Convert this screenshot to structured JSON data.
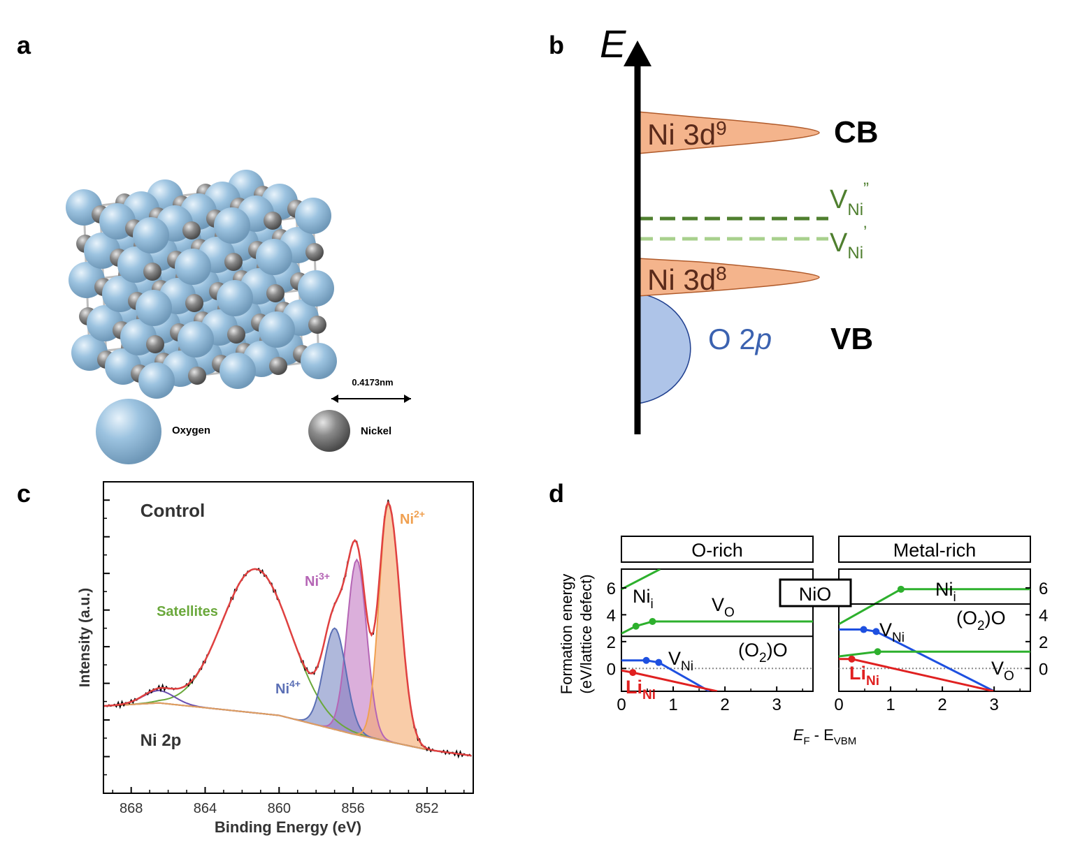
{
  "panels": {
    "a": {
      "letter": "a",
      "scale_label": "0.4173nm",
      "legend_oxygen": "Oxygen",
      "legend_nickel": "Nickel",
      "colors": {
        "oxygen": "#9cc3e0",
        "nickel": "#808080",
        "bond": "#b8b8b8"
      }
    },
    "b": {
      "letter": "b",
      "axis_label": "E",
      "band_ni3d9": "Ni 3d",
      "band_ni3d9_sup": "9",
      "band_ni3d8": "Ni 3d",
      "band_ni3d8_sup": "8",
      "band_o2p": "O 2",
      "band_o2p_ital": "p",
      "cb_label": "CB",
      "vb_label": "VB",
      "vni_dd": "V",
      "vni_dd_sub": "Ni",
      "vni_dd_sup": "”",
      "vni_d": "V",
      "vni_d_sub": "Ni",
      "vni_d_sup": "’",
      "colors": {
        "band": "#f4b48c",
        "o2p": "#aec4e8",
        "vni_dd": "#4f7f2f",
        "vni_d": "#a8d08d",
        "label_band": "#5a2a1a",
        "o2p_text": "#3b62b0"
      }
    },
    "c": {
      "letter": "c",
      "title": "Control",
      "subtitle": "Ni 2p",
      "peak_labels": {
        "sat": "Satellites",
        "ni3": "Ni",
        "ni3_sup": "3+",
        "ni4": "Ni",
        "ni4_sup": "4+",
        "ni2": "Ni",
        "ni2_sup": "2+"
      },
      "colors": {
        "sat": "#6aa83b",
        "ni3": "#b565b5",
        "ni4": "#5b6fb5",
        "ni2": "#f0a050",
        "fit": "#e04040",
        "data": "#000000"
      }
    },
    "d": {
      "letter": "d",
      "center_label": "NiO",
      "left_title": "O-rich",
      "right_title": "Metal-rich",
      "ylabel_line1": "Formation energy",
      "ylabel_line2": "(eV/lattice defect)",
      "xlabel": "E",
      "xlabel_sub1": "F",
      "xlabel_mid": " - E",
      "xlabel_sub2": "VBM",
      "left_labels": {
        "nii": "Ni",
        "nii_sub": "i",
        "vo": "V",
        "vo_sub": "O",
        "o2o": "(O",
        "o2o_sub": "2",
        "o2o_end": ")O",
        "vni": "V",
        "vni_sub": "Ni",
        "lini": "Li",
        "lini_sub": "Ni"
      },
      "right_labels": {
        "nii": "Ni",
        "nii_sub": "i",
        "vni": "V",
        "vni_sub": "Ni",
        "o2o": "(O",
        "o2o_sub": "2",
        "o2o_end": ")O",
        "lini": "Li",
        "lini_sub": "Ni",
        "vo": "V",
        "vo_sub": "O"
      },
      "colors": {
        "green": "#2db02d",
        "blue": "#1e50e0",
        "red": "#e02020",
        "black": "#000000"
      }
    }
  },
  "chart_data": [
    {
      "type": "line",
      "panel": "c",
      "title": "Control",
      "subtitle": "Ni 2p",
      "xlabel": "Binding Energy (eV)",
      "ylabel": "Intensity (a.u.)",
      "xlim": [
        869.5,
        849.5
      ],
      "ylim": [
        0,
        1.0
      ],
      "x_ticks": [
        868,
        864,
        860,
        856,
        852
      ],
      "x_tick_labels": [
        "868",
        "864",
        "860",
        "856",
        "852"
      ],
      "series": [
        {
          "name": "Satellites",
          "peak_center": 861.3,
          "peak_height": 0.72
        },
        {
          "name": "Ni3+",
          "peak_center": 855.8,
          "peak_height": 0.75
        },
        {
          "name": "Ni4+",
          "peak_center": 857.0,
          "peak_height": 0.53
        },
        {
          "name": "Ni2+",
          "peak_center": 854.1,
          "peak_height": 0.93
        }
      ],
      "baseline": {
        "x": [
          869.5,
          866.5,
          860,
          856,
          852,
          849.5
        ],
        "y": [
          0.28,
          0.29,
          0.25,
          0.19,
          0.14,
          0.12
        ]
      },
      "envelope_peaks": {
        "x": [
          861.3,
          855.6,
          854.0
        ],
        "y": [
          0.74,
          0.84,
          0.91
        ]
      }
    },
    {
      "type": "line",
      "panel": "d-left",
      "title": "O-rich",
      "xlabel": "E_F - E_VBM",
      "ylabel": "Formation energy (eV/lattice defect)",
      "xlim": [
        0,
        3.7
      ],
      "ylim": [
        -1.7,
        7.4
      ],
      "x_ticks": [
        0,
        1,
        2,
        3
      ],
      "y_ticks": [
        0,
        2,
        4,
        6
      ],
      "series": [
        {
          "name": "Ni_i",
          "x": [
            0,
            0.75
          ],
          "y": [
            5.9,
            7.4
          ]
        },
        {
          "name": "V_O",
          "x": [
            0,
            0.28,
            0.6,
            3.7
          ],
          "y": [
            2.6,
            3.15,
            3.5,
            3.5
          ]
        },
        {
          "name": "(O2)O",
          "x": [
            0,
            3.7
          ],
          "y": [
            2.4,
            2.4
          ]
        },
        {
          "name": "V_Ni",
          "x": [
            0,
            0.48,
            0.72,
            1.7
          ],
          "y": [
            0.6,
            0.6,
            0.45,
            -1.7
          ]
        },
        {
          "name": "Li_Ni",
          "x": [
            0,
            0.22,
            1.85
          ],
          "y": [
            -0.15,
            -0.3,
            -1.7
          ]
        }
      ]
    },
    {
      "type": "line",
      "panel": "d-right",
      "title": "Metal-rich",
      "xlabel": "E_F - E_VBM",
      "ylabel": "",
      "xlim": [
        0,
        3.7
      ],
      "ylim": [
        -1.7,
        7.4
      ],
      "x_ticks": [
        0,
        1,
        2,
        3
      ],
      "y_ticks": [
        0,
        2,
        4,
        6
      ],
      "series": [
        {
          "name": "Ni_i",
          "x": [
            0,
            1.2,
            3.7
          ],
          "y": [
            3.3,
            5.9,
            5.9
          ]
        },
        {
          "name": "(O2)O",
          "x": [
            0,
            3.7
          ],
          "y": [
            4.8,
            4.8
          ]
        },
        {
          "name": "V_Ni",
          "x": [
            0,
            0.48,
            0.72,
            3.0
          ],
          "y": [
            2.9,
            2.9,
            2.75,
            -1.7
          ]
        },
        {
          "name": "V_O",
          "x": [
            0,
            0.75,
            3.7
          ],
          "y": [
            0.9,
            1.25,
            1.25
          ]
        },
        {
          "name": "Li_Ni",
          "x": [
            0,
            0.25,
            3.0
          ],
          "y": [
            0.7,
            0.7,
            -1.7
          ]
        }
      ]
    }
  ]
}
